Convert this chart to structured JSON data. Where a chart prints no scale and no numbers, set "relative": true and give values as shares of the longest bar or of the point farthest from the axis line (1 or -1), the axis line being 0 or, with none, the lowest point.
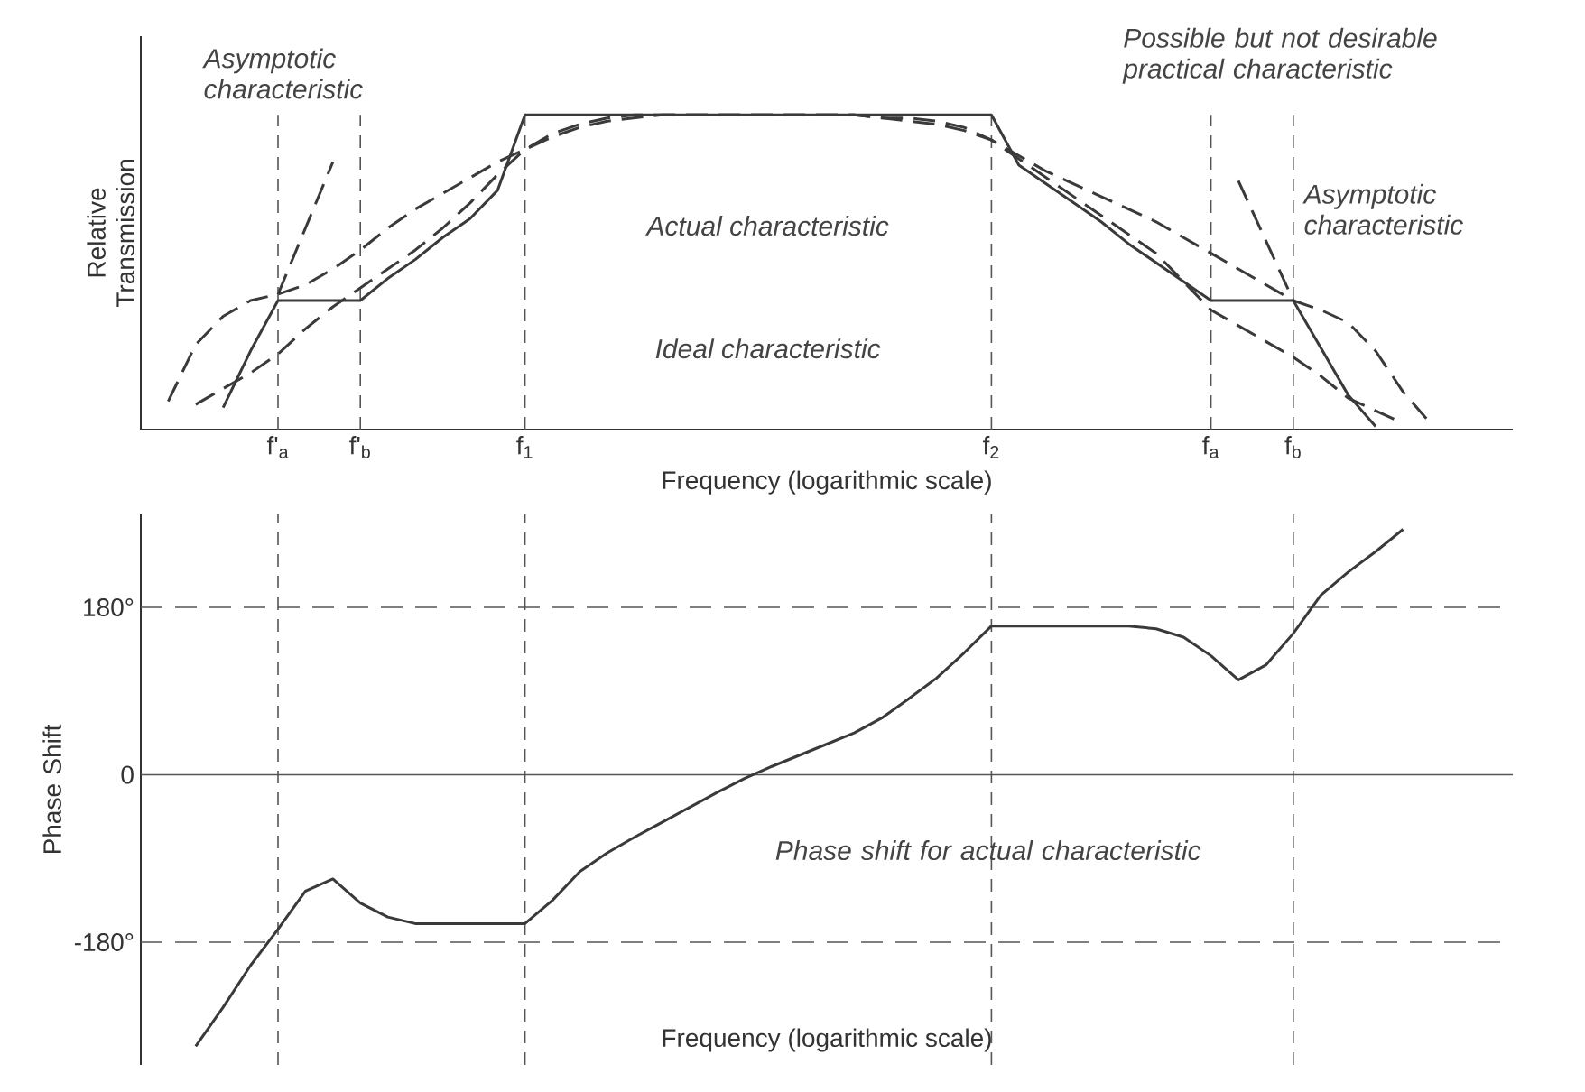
{
  "chart_data": [
    {
      "type": "line",
      "relative": true,
      "xlabel": "Frequency (logarithmic scale)",
      "ylabel": "Relative Transmission",
      "tick_labels": "x",
      "grid": "x",
      "categories": [
        null,
        null,
        null,
        null,
        null,
        "f'$_{a}$",
        null,
        null,
        "f'$_{b}$",
        null,
        null,
        null,
        null,
        null,
        "f$_{1}$",
        null,
        null,
        null,
        null,
        null,
        null,
        null,
        null,
        null,
        null,
        null,
        null,
        null,
        null,
        null,
        null,
        "f$_{2}$",
        null,
        null,
        null,
        null,
        null,
        null,
        null,
        "f$_{a}$",
        null,
        null,
        "f$_{b}$",
        null,
        null,
        null,
        null,
        null,
        null,
        null,
        null
      ],
      "series": [
        {
          "color": "#3a3a3a",
          "line_style": "solid",
          "values": [
            null,
            null,
            null,
            0.07,
            0.25,
            0.41,
            0.41,
            0.41,
            0.41,
            0.48,
            0.54,
            0.61,
            0.67,
            0.76,
            1,
            1,
            1,
            1,
            1,
            1,
            1,
            1,
            1,
            1,
            1,
            1,
            1,
            1,
            1,
            1,
            1,
            1,
            0.84,
            0.78,
            0.72,
            0.66,
            0.59,
            0.53,
            0.47,
            0.41,
            0.41,
            0.41,
            0.41,
            0.26,
            0.11,
            0.01,
            null,
            null,
            null,
            null,
            null
          ]
        },
        {
          "color": "#3a3a3a",
          "line_style": "dashed",
          "values": [
            null,
            0.09,
            0.27,
            0.36,
            0.41,
            0.43,
            0.46,
            0.51,
            0.57,
            0.64,
            0.7,
            0.75,
            0.8,
            0.85,
            0.89,
            0.94,
            0.97,
            0.99,
            1,
            1,
            1,
            1,
            1,
            1,
            1,
            1,
            1,
            0.99,
            0.98,
            0.97,
            0.95,
            0.92,
            0.87,
            0.82,
            0.78,
            0.74,
            0.7,
            0.66,
            0.61,
            0.56,
            0.51,
            0.46,
            0.41,
            0.38,
            0.34,
            0.25,
            0.12,
            0.02,
            null,
            null,
            null
          ]
        },
        {
          "color": "#3a3a3a",
          "line_style": "dashed",
          "values": [
            null,
            null,
            0.08,
            0.13,
            0.18,
            0.24,
            0.32,
            0.39,
            0.45,
            0.51,
            0.57,
            0.64,
            0.72,
            0.81,
            0.89,
            0.93,
            0.96,
            0.98,
            0.99,
            1,
            1,
            1,
            1,
            1,
            1,
            1,
            1,
            0.99,
            0.99,
            0.98,
            0.96,
            0.92,
            0.86,
            0.8,
            0.74,
            0.68,
            0.62,
            0.56,
            0.47,
            0.38,
            0.33,
            0.28,
            0.23,
            0.17,
            0.1,
            0.06,
            0.02,
            null,
            null,
            null,
            null
          ]
        },
        {
          "color": "#3a3a3a",
          "line_style": "dashed",
          "values": [
            null,
            null,
            null,
            null,
            null,
            0.43,
            0.64,
            0.85,
            null,
            null,
            null,
            null,
            null,
            null,
            null,
            null,
            null,
            null,
            null,
            null,
            null,
            null,
            null,
            null,
            null,
            null,
            null,
            null,
            null,
            null,
            null,
            null,
            null,
            null,
            null,
            null,
            null,
            null,
            null,
            null,
            null,
            null,
            null,
            null,
            null,
            null,
            null,
            null,
            null,
            null,
            null
          ]
        },
        {
          "color": "#3a3a3a",
          "line_style": "dashed",
          "values": [
            null,
            null,
            null,
            null,
            null,
            null,
            null,
            null,
            null,
            null,
            null,
            null,
            null,
            null,
            null,
            null,
            null,
            null,
            null,
            null,
            null,
            null,
            null,
            null,
            null,
            null,
            null,
            null,
            null,
            null,
            null,
            null,
            null,
            null,
            null,
            null,
            null,
            null,
            null,
            null,
            0.79,
            0.6,
            0.41,
            null,
            null,
            null,
            null,
            null,
            null,
            null,
            null
          ]
        }
      ],
      "annotations": [
        "Asymptotic characteristic",
        "Possible but not desirable practical characteristic",
        "Asymptotic characteristic",
        "Actual characteristic",
        "Ideal characteristic"
      ]
    },
    {
      "type": "line",
      "xlabel": "Frequency (logarithmic scale)",
      "ylabel": "Phase Shift",
      "tick_labels": "y",
      "ylim": [
        -312,
        280
      ],
      "categories": [
        null,
        null,
        null,
        null,
        null,
        "f'$_{a}$",
        null,
        null,
        "f'$_{b}$",
        null,
        null,
        null,
        null,
        null,
        "f$_{1}$",
        null,
        null,
        null,
        null,
        null,
        null,
        null,
        null,
        null,
        null,
        null,
        null,
        null,
        null,
        null,
        null,
        "f$_{2}$",
        null,
        null,
        null,
        null,
        null,
        null,
        null,
        "f$_{a}$",
        null,
        null,
        "f$_{b}$",
        null,
        null,
        null,
        null,
        null,
        null,
        null,
        null
      ],
      "yticks": [
        {
          "value": 180,
          "label": "180°"
        },
        0,
        {
          "value": -180,
          "label": "-180°"
        }
      ],
      "series": [
        {
          "color": "#3a3a3a",
          "line_style": "solid",
          "values": [
            null,
            null,
            -292,
            -250,
            -205,
            -166,
            -125,
            -112,
            -138,
            -153,
            -160,
            -160,
            -160,
            -160,
            -160,
            -135,
            -104,
            -84,
            -67,
            -51,
            -35,
            -19,
            -4,
            9,
            21,
            33,
            45,
            61,
            82,
            104,
            131,
            160,
            160,
            160,
            160,
            160,
            160,
            157,
            148,
            128,
            102,
            118,
            152,
            193,
            218,
            240,
            264,
            null,
            null,
            null,
            null
          ]
        }
      ],
      "ref_lines": [
        {
          "axis": "y",
          "value": 180,
          "color": "#555555",
          "line_style": "dashed"
        },
        {
          "axis": "y",
          "value": 0,
          "color": "#555555",
          "line_style": "solid"
        },
        {
          "axis": "y",
          "value": -180,
          "color": "#555555",
          "line_style": "dashed"
        },
        {
          "axis": "x",
          "value": "f'$_{a}$",
          "color": "#555555",
          "line_style": "dashed"
        },
        {
          "axis": "x",
          "value": "f$_{1}$",
          "color": "#555555",
          "line_style": "dashed"
        },
        {
          "axis": "x",
          "value": "f$_{2}$",
          "color": "#555555",
          "line_style": "dashed"
        },
        {
          "axis": "x",
          "value": "f$_{b}$",
          "color": "#555555",
          "line_style": "dashed"
        }
      ],
      "annotations": [
        "Phase shift for actual characteristic"
      ]
    }
  ]
}
